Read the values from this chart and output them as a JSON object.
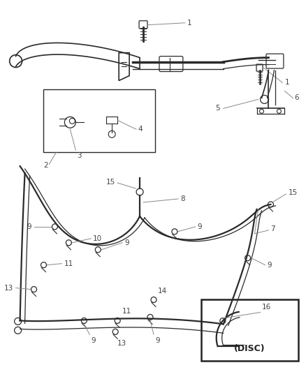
{
  "bg_color": "#ffffff",
  "line_color": "#555555",
  "dark_color": "#2a2a2a",
  "label_color": "#555555",
  "fig_width": 4.38,
  "fig_height": 5.33,
  "dpi": 100
}
